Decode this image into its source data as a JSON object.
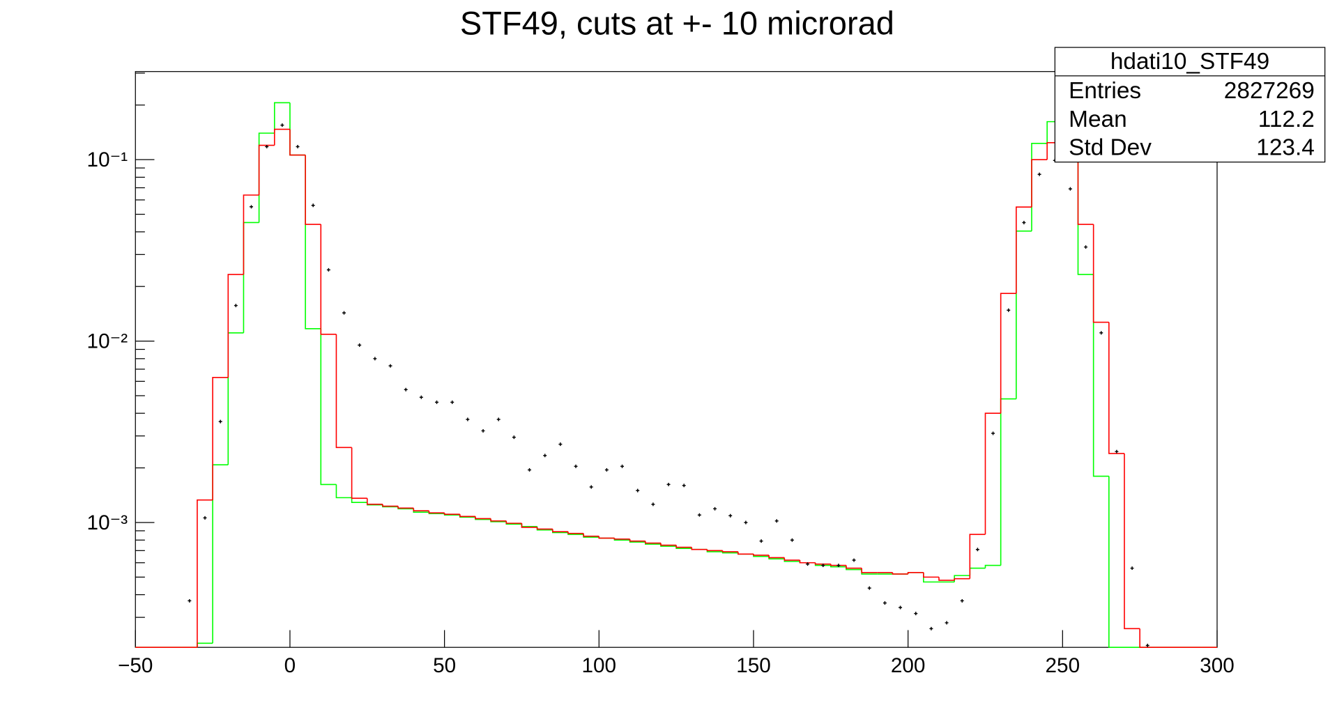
{
  "chart_data": {
    "type": "histogram",
    "title": "STF49, cuts at +- 10 microrad",
    "log_y": true,
    "bins": [
      -50,
      -45,
      -40,
      -35,
      -30,
      -25,
      -20,
      -15,
      -10,
      -5,
      0,
      5,
      10,
      15,
      20,
      25,
      30,
      35,
      40,
      45,
      50,
      55,
      60,
      65,
      70,
      75,
      80,
      85,
      90,
      95,
      100,
      105,
      110,
      115,
      120,
      125,
      130,
      135,
      140,
      145,
      150,
      155,
      160,
      165,
      170,
      175,
      180,
      185,
      190,
      195,
      200,
      205,
      210,
      215,
      220,
      225,
      230,
      235,
      240,
      245,
      250,
      255,
      260,
      265,
      270,
      275,
      280,
      285,
      290,
      295,
      300
    ],
    "series": [
      {
        "color": "#00ff00",
        "style": "step",
        "values": [
          0,
          0,
          0,
          0,
          0.000216,
          0.00208,
          0.0111,
          0.045,
          0.14,
          0.206,
          0.106,
          0.0117,
          0.00162,
          0.00137,
          0.00129,
          0.00125,
          0.00122,
          0.00119,
          0.00114,
          0.00112,
          0.0011,
          0.00107,
          0.00104,
          0.00101,
          0.00098,
          0.00095,
          0.00091,
          0.00088,
          0.00086,
          0.00083,
          0.00082,
          0.0008,
          0.00078,
          0.00076,
          0.00074,
          0.00072,
          0.00071,
          0.00069,
          0.00068,
          0.00067,
          0.00065,
          0.00063,
          0.00061,
          0.0006,
          0.00058,
          0.00057,
          0.00055,
          0.00052,
          0.00052,
          0.00052,
          0.00053,
          0.00047,
          0.00047,
          0.00051,
          0.00056,
          0.00058,
          0.0048,
          0.0404,
          0.123,
          0.162,
          0.12,
          0.0233,
          0.0018,
          0,
          0,
          0,
          0,
          0,
          0,
          0
        ]
      },
      {
        "color": "#ff0000",
        "style": "step",
        "values": [
          0,
          0,
          0,
          0,
          0.00133,
          0.0063,
          0.0233,
          0.0638,
          0.12,
          0.147,
          0.106,
          0.044,
          0.0109,
          0.00259,
          0.00136,
          0.00126,
          0.00123,
          0.0012,
          0.00116,
          0.00113,
          0.00111,
          0.00108,
          0.00105,
          0.00102,
          0.00099,
          0.00094,
          0.00092,
          0.00089,
          0.00087,
          0.00084,
          0.00082,
          0.00081,
          0.00079,
          0.00077,
          0.00075,
          0.00073,
          0.00071,
          0.0007,
          0.00069,
          0.00067,
          0.00066,
          0.00064,
          0.00062,
          0.0006,
          0.00059,
          0.00058,
          0.00056,
          0.00053,
          0.00053,
          0.00052,
          0.00053,
          0.0005,
          0.00048,
          0.00049,
          0.00086,
          0.004,
          0.0183,
          0.0548,
          0.1,
          0.124,
          0.1,
          0.044,
          0.0127,
          0.0024,
          0.00026,
          0,
          0,
          0,
          0,
          0
        ]
      },
      {
        "color": "#000000",
        "style": "points",
        "values": [
          null,
          null,
          null,
          0.00037,
          0.00106,
          0.0036,
          0.0157,
          0.055,
          0.118,
          0.155,
          0.118,
          0.056,
          0.0247,
          0.0143,
          0.0095,
          0.008,
          0.0073,
          0.0054,
          0.0049,
          0.0046,
          0.0046,
          0.0037,
          0.0032,
          0.0037,
          0.00295,
          0.00195,
          0.00234,
          0.0027,
          0.00204,
          0.00157,
          0.00195,
          0.00204,
          0.0015,
          0.00126,
          0.00162,
          0.0016,
          0.0011,
          0.00119,
          0.00109,
          0.001,
          0.00079,
          0.00102,
          0.0008,
          0.00059,
          0.00058,
          0.00058,
          0.00062,
          0.000435,
          0.00036,
          0.00034,
          0.000315,
          0.00026,
          0.00028,
          0.00037,
          0.00071,
          0.0031,
          0.0148,
          0.045,
          0.083,
          0.099,
          0.069,
          0.033,
          0.0111,
          0.00246,
          0.00056,
          0.00021,
          null,
          null,
          null,
          null
        ]
      }
    ],
    "xlim": [
      -50,
      300
    ],
    "xticks": [
      {
        "value": -50,
        "label": "−50"
      },
      0,
      50,
      100,
      150,
      200,
      250,
      300
    ],
    "ylim": [
      0.000205,
      0.306
    ],
    "yticks": [
      {
        "value": 0.1,
        "label": "10⁻¹"
      },
      {
        "value": 0.01,
        "label": "10⁻²"
      },
      {
        "value": 0.001,
        "label": "10⁻³"
      }
    ],
    "yminorticks": [
      0.0003,
      0.0004,
      0.0005,
      0.0006,
      0.0007,
      0.0008,
      0.0009,
      0.002,
      0.003,
      0.004,
      0.005,
      0.006,
      0.007,
      0.008,
      0.009,
      0.02,
      0.03,
      0.04,
      0.05,
      0.06,
      0.07,
      0.08,
      0.09,
      0.2,
      0.3
    ],
    "stats": {
      "title": "hdati10_STF49",
      "rows": [
        [
          "Entries",
          2827269
        ],
        [
          "Mean",
          112.2
        ],
        [
          "Std Dev",
          123.4
        ]
      ]
    }
  }
}
